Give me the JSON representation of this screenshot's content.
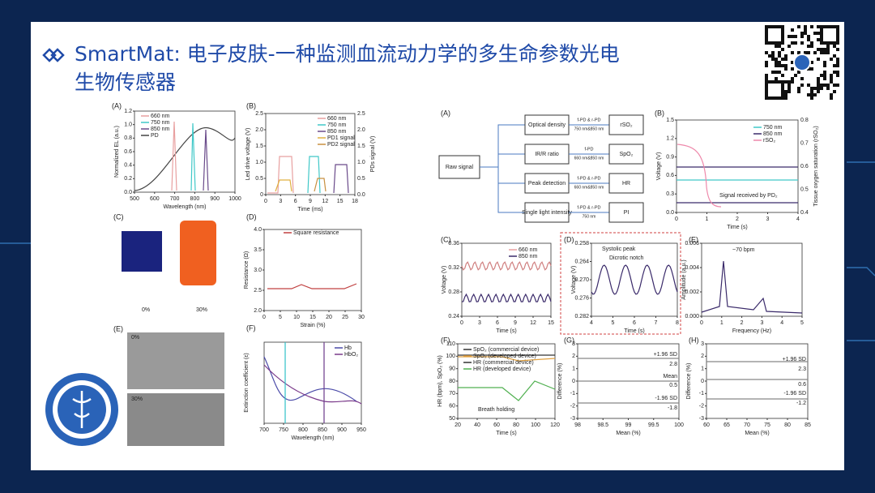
{
  "header": {
    "title_line1": "SmartMat: 电子皮肤-一种监测血流动力学的多生命参数光电",
    "title_line2": "生物传感器"
  },
  "left_panels": {
    "A": {
      "label": "(A)",
      "ylabel": "Normalized EL (a.u.)",
      "xlabel": "Wavelength (nm)",
      "xticks": [
        "500",
        "600",
        "700",
        "800",
        "900",
        "1000"
      ],
      "yticks": [
        "0.0",
        "0.2",
        "0.4",
        "0.6",
        "0.8",
        "1.0",
        "1.2"
      ],
      "legend": [
        "660 nm",
        "750 nm",
        "850 nm",
        "PD"
      ]
    },
    "B": {
      "label": "(B)",
      "ylabel": "Led drive voltage (V)",
      "y2label": "PDs signal (V)",
      "xlabel": "Time (ms)",
      "xticks": [
        "0",
        "3",
        "6",
        "9",
        "12",
        "15",
        "18"
      ],
      "yticks": [
        "0",
        "0.5",
        "1.0",
        "1.5",
        "2.0",
        "2.5"
      ],
      "y2ticks": [
        "0.0",
        "0.5",
        "1.0",
        "1.5",
        "2.0",
        "2.5"
      ],
      "legend": [
        "660 nm",
        "750 nm",
        "850 nm",
        "PD1 signal",
        "PD2 signal"
      ]
    },
    "C": {
      "label": "(C)",
      "captions": [
        "0%",
        "30%"
      ]
    },
    "D": {
      "label": "(D)",
      "ylabel": "Resistance (Ω)",
      "xlabel": "Strain (%)",
      "xticks": [
        "0",
        "5",
        "10",
        "15",
        "20",
        "25",
        "30"
      ],
      "yticks": [
        "2.0",
        "2.5",
        "3.0",
        "3.5",
        "4.0"
      ],
      "legend": [
        "Square resistance"
      ]
    },
    "E": {
      "label": "(E)",
      "captions": [
        "0%",
        "30%"
      ]
    },
    "F": {
      "label": "(F)",
      "ylabel": "Extinction coefficient (ε)",
      "xlabel": "Wavelength (nm)",
      "xticks": [
        "700",
        "750",
        "800",
        "850",
        "900",
        "950"
      ],
      "legend": [
        "Hb",
        "HbO₂"
      ]
    }
  },
  "right_panels": {
    "flow": {
      "label": "(A)",
      "input": "Raw signal",
      "rows": [
        {
          "feature": "Optical density",
          "via": "f-PD & r-PD",
          "sub": "750 nm&850 nm",
          "out": "rSO₂"
        },
        {
          "feature": "IR/R ratio",
          "via": "f-PD",
          "sub": "660 nm&850 nm",
          "out": "SpO₂"
        },
        {
          "feature": "Peak detection",
          "via": "f-PD & r-PD",
          "sub": "660 nm&850 nm",
          "out": "HR"
        },
        {
          "feature": "Single light intensity",
          "via": "f-PD & r-PD",
          "sub": "750 nm",
          "out": "PI"
        }
      ]
    },
    "B": {
      "label": "(B)",
      "ylabel": "Voltage (V)",
      "y2label": "Tissue oxygen saturation (rSO₂)",
      "xlabel": "Time (s)",
      "xticks": [
        "0",
        "1",
        "2",
        "3",
        "4"
      ],
      "yticks": [
        "0.0",
        "0.3",
        "0.6",
        "0.9",
        "1.2",
        "1.5"
      ],
      "y2ticks": [
        "0.4",
        "0.5",
        "0.6",
        "0.7",
        "0.8"
      ],
      "legend": [
        "750 nm",
        "850 nm",
        "rSO₂"
      ],
      "annotations": [
        "Signal received by PD₂"
      ]
    },
    "C": {
      "label": "(C)",
      "ylabel": "Voltage (V)",
      "xlabel": "Time (s)",
      "xticks": [
        "0",
        "3",
        "6",
        "9",
        "12",
        "15"
      ],
      "yticks": [
        "0.24",
        "0.28",
        "0.32",
        "0.36"
      ],
      "legend": [
        "660 nm",
        "850 nm"
      ]
    },
    "D": {
      "label": "(D)",
      "ylabel": "Voltage (V)",
      "xlabel": "Time (s)",
      "xticks": [
        "4",
        "5",
        "6",
        "7",
        "8"
      ],
      "yticks": [
        "0.282",
        "0.276",
        "0.270",
        "0.264",
        "0.258"
      ],
      "annotations": [
        "Systolic peak",
        "Dicrotic notch"
      ]
    },
    "E": {
      "label": "(E)",
      "ylabel": "Amplitude (a.u.)",
      "xlabel": "Frequency (Hz)",
      "xticks": [
        "0",
        "1",
        "2",
        "3",
        "4",
        "5"
      ],
      "yticks": [
        "0.000",
        "0.002",
        "0.004",
        "0.006"
      ],
      "annotations": [
        "~70 bpm"
      ]
    },
    "F": {
      "label": "(F)",
      "ylabel": "HR (bpm), SpO₂ (%)",
      "xlabel": "Time (s)",
      "xticks": [
        "20",
        "40",
        "60",
        "80",
        "100",
        "120"
      ],
      "yticks": [
        "50",
        "60",
        "70",
        "80",
        "90",
        "100",
        "110"
      ],
      "legend": [
        "SpO₂ (commercial device)",
        "SpO₂ (developed device)",
        "HR (commercial device)",
        "HR (developed device)"
      ],
      "annotations": [
        "Breath holding"
      ]
    },
    "G": {
      "label": "(G)",
      "ylabel": "Difference (%)",
      "xlabel": "Mean (%)",
      "xticks": [
        "98",
        "98.5",
        "99",
        "99.5",
        "100"
      ],
      "yticks": [
        "-3",
        "-2",
        "-1",
        "0",
        "1",
        "2",
        "3"
      ],
      "annotations": [
        "+1.96 SD",
        "2.8",
        "Mean",
        "0.5",
        "-1.96 SD",
        "-1.8"
      ]
    },
    "H": {
      "label": "(H)",
      "ylabel": "Difference (%)",
      "xlabel": "Mean (%)",
      "xticks": [
        "60",
        "65",
        "70",
        "75",
        "80",
        "85"
      ],
      "yticks": [
        "-3",
        "-2",
        "-1",
        "0",
        "1",
        "2",
        "3"
      ],
      "annotations": [
        "+1.96 SD",
        "2.3",
        "0.6",
        "-1.96 SD",
        "-1.2"
      ]
    }
  }
}
